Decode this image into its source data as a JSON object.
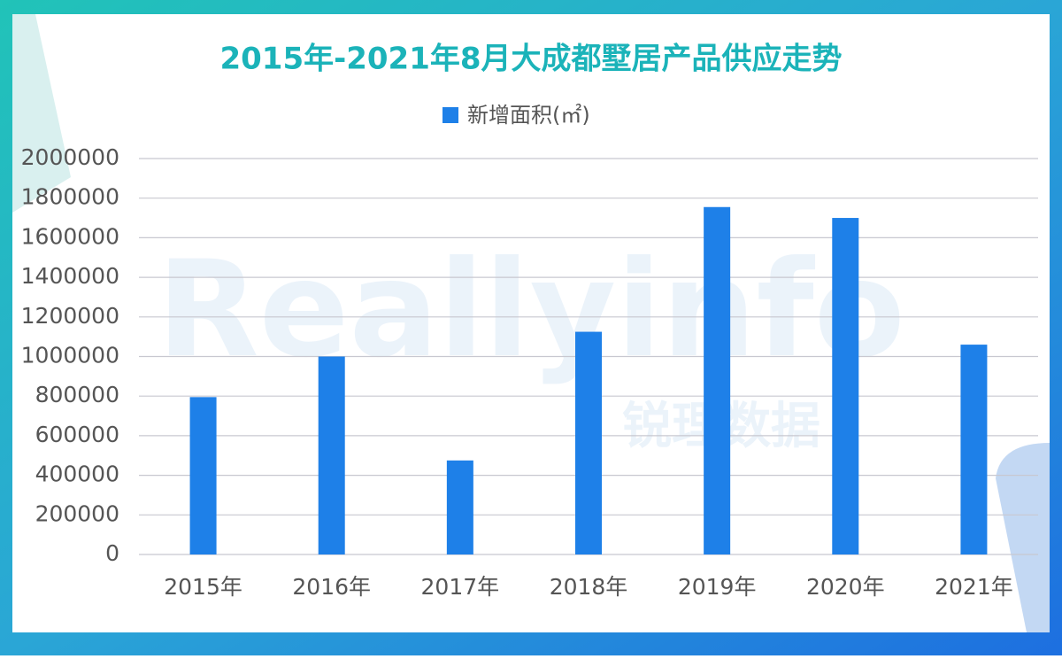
{
  "chart_data": {
    "type": "bar",
    "title": "2015年-2021年8月大成都墅居产品供应走势",
    "watermark": "Reallyinfo",
    "watermark_subtitle": "锐理数据",
    "categories": [
      "2015年",
      "2016年",
      "2017年",
      "2018年",
      "2019年",
      "2020年",
      "2021年"
    ],
    "series": [
      {
        "name": "新增面积(㎡)",
        "color": "#1e80e8",
        "values": [
          795000,
          1000000,
          475000,
          1125000,
          1755000,
          1700000,
          1060000
        ]
      }
    ],
    "ylim": [
      0,
      2000000
    ],
    "yticks": [
      0,
      200000,
      400000,
      600000,
      800000,
      1000000,
      1200000,
      1400000,
      1600000,
      1800000,
      2000000
    ],
    "grid": true,
    "legend": "top"
  }
}
